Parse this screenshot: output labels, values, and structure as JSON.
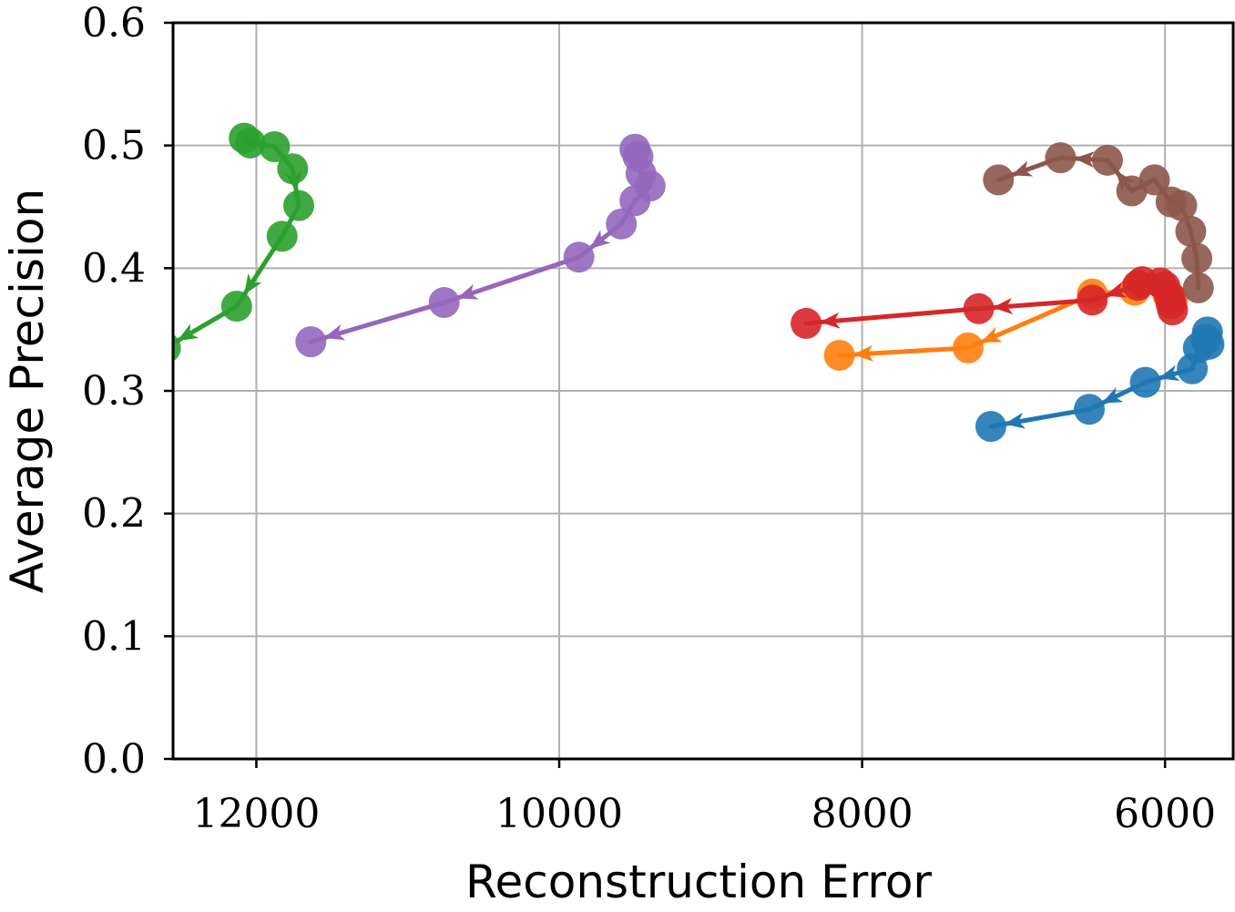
{
  "chart_data": {
    "type": "scatter",
    "title": "",
    "xlabel": "Reconstruction Error",
    "ylabel": "Average Precision",
    "xlim": [
      12550,
      5550
    ],
    "ylim": [
      0.0,
      0.6
    ],
    "x_inverted": true,
    "xticks": [
      12000,
      10000,
      8000,
      6000
    ],
    "xtick_labels": [
      "12000",
      "10000",
      "8000",
      "6000"
    ],
    "yticks": [
      0.0,
      0.1,
      0.2,
      0.3,
      0.4,
      0.5,
      0.6
    ],
    "ytick_labels": [
      "0.0",
      "0.1",
      "0.2",
      "0.3",
      "0.4",
      "0.5",
      "0.6"
    ],
    "grid": true,
    "legend": "none",
    "series": [
      {
        "name": "series-blue",
        "color": "#1f77b4",
        "points": [
          {
            "x": 5720,
            "y": 0.348
          },
          {
            "x": 5730,
            "y": 0.342
          },
          {
            "x": 5710,
            "y": 0.338
          },
          {
            "x": 5780,
            "y": 0.335
          },
          {
            "x": 5820,
            "y": 0.318
          },
          {
            "x": 6130,
            "y": 0.307
          },
          {
            "x": 6500,
            "y": 0.285
          },
          {
            "x": 7150,
            "y": 0.271
          }
        ]
      },
      {
        "name": "series-orange",
        "color": "#ff7f0e",
        "points": [
          {
            "x": 5950,
            "y": 0.375
          },
          {
            "x": 5980,
            "y": 0.378
          },
          {
            "x": 6200,
            "y": 0.382
          },
          {
            "x": 6480,
            "y": 0.379
          },
          {
            "x": 7300,
            "y": 0.335
          },
          {
            "x": 8150,
            "y": 0.329
          }
        ]
      },
      {
        "name": "series-green",
        "color": "#2ca02c",
        "points": [
          {
            "x": 12080,
            "y": 0.506
          },
          {
            "x": 12040,
            "y": 0.502
          },
          {
            "x": 11880,
            "y": 0.499
          },
          {
            "x": 11760,
            "y": 0.481
          },
          {
            "x": 11720,
            "y": 0.451
          },
          {
            "x": 11830,
            "y": 0.426
          },
          {
            "x": 12130,
            "y": 0.369
          },
          {
            "x": 12600,
            "y": 0.335
          }
        ]
      },
      {
        "name": "series-red",
        "color": "#d62728",
        "points": [
          {
            "x": 5950,
            "y": 0.366
          },
          {
            "x": 5960,
            "y": 0.371
          },
          {
            "x": 5970,
            "y": 0.377
          },
          {
            "x": 6000,
            "y": 0.385
          },
          {
            "x": 6030,
            "y": 0.388
          },
          {
            "x": 6150,
            "y": 0.389
          },
          {
            "x": 6180,
            "y": 0.386
          },
          {
            "x": 6480,
            "y": 0.374
          },
          {
            "x": 7230,
            "y": 0.367
          },
          {
            "x": 8370,
            "y": 0.355
          }
        ]
      },
      {
        "name": "series-purple",
        "color": "#9467bd",
        "points": [
          {
            "x": 9500,
            "y": 0.497
          },
          {
            "x": 9480,
            "y": 0.491
          },
          {
            "x": 9460,
            "y": 0.477
          },
          {
            "x": 9400,
            "y": 0.467
          },
          {
            "x": 9500,
            "y": 0.455
          },
          {
            "x": 9590,
            "y": 0.436
          },
          {
            "x": 9870,
            "y": 0.409
          },
          {
            "x": 10760,
            "y": 0.372
          },
          {
            "x": 11640,
            "y": 0.34
          }
        ]
      },
      {
        "name": "series-brown",
        "color": "#8c564b",
        "points": [
          {
            "x": 5780,
            "y": 0.384
          },
          {
            "x": 5790,
            "y": 0.408
          },
          {
            "x": 5830,
            "y": 0.43
          },
          {
            "x": 5890,
            "y": 0.451
          },
          {
            "x": 5960,
            "y": 0.454
          },
          {
            "x": 6070,
            "y": 0.472
          },
          {
            "x": 6220,
            "y": 0.463
          },
          {
            "x": 6380,
            "y": 0.488
          },
          {
            "x": 6690,
            "y": 0.49
          },
          {
            "x": 7100,
            "y": 0.472
          }
        ]
      }
    ]
  }
}
